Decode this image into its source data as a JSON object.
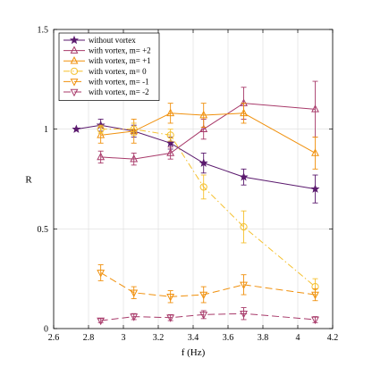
{
  "chart_data": {
    "type": "line",
    "title": "",
    "xlabel": "f (Hz)",
    "ylabel": "R",
    "xlim": [
      2.6,
      4.2
    ],
    "ylim": [
      0,
      1.5
    ],
    "xticks": [
      2.6,
      2.8,
      3,
      3.2,
      3.4,
      3.6,
      3.8,
      4,
      4.2
    ],
    "xtick_labels": [
      "2.6",
      "2.8",
      "3",
      "3.2",
      "3.4",
      "3.6",
      "3.8",
      "4",
      "4.2"
    ],
    "yticks": [
      0,
      0.5,
      1,
      1.5
    ],
    "ytick_labels": [
      "0",
      "0.5",
      "1",
      "1.5"
    ],
    "grid": true,
    "legend_position": "top-left",
    "series": [
      {
        "name": "without vortex",
        "color": "#5b1a6e",
        "marker": "star",
        "dash": "",
        "x": [
          2.73,
          2.87,
          3.06,
          3.27,
          3.46,
          3.69,
          4.1
        ],
        "y": [
          1.0,
          1.02,
          0.99,
          0.93,
          0.83,
          0.76,
          0.7
        ],
        "err": [
          0,
          0.03,
          0.03,
          0.03,
          0.05,
          0.04,
          0.07
        ]
      },
      {
        "name": "with vortex, m= +2",
        "color": "#a83a6a",
        "marker": "triangle-up",
        "dash": "",
        "x": [
          2.87,
          3.06,
          3.27,
          3.46,
          3.69,
          4.1
        ],
        "y": [
          0.86,
          0.85,
          0.88,
          1.0,
          1.13,
          1.1
        ],
        "err": [
          0.03,
          0.03,
          0.03,
          0.05,
          0.08,
          0.14
        ]
      },
      {
        "name": "with vortex, m= +1",
        "color": "#f0900c",
        "marker": "triangle-up",
        "dash": "",
        "x": [
          2.87,
          3.06,
          3.27,
          3.46,
          3.69,
          4.1
        ],
        "y": [
          0.97,
          0.99,
          1.08,
          1.07,
          1.08,
          0.88
        ],
        "err": [
          0.04,
          0.06,
          0.05,
          0.06,
          0.05,
          0.08
        ]
      },
      {
        "name": "with vortex, m= 0",
        "color": "#f5c02e",
        "marker": "circle",
        "dash": "7 3 1.5 3",
        "x": [
          2.87,
          3.06,
          3.27,
          3.46,
          3.69,
          4.1
        ],
        "y": [
          1.0,
          1.0,
          0.97,
          0.71,
          0.51,
          0.21
        ],
        "err": [
          0.02,
          0.03,
          0.03,
          0.06,
          0.08,
          0.04
        ]
      },
      {
        "name": "with vortex, m= -1",
        "color": "#f0900c",
        "marker": "triangle-down",
        "dash": "8 4",
        "x": [
          2.87,
          3.06,
          3.27,
          3.46,
          3.69,
          4.1
        ],
        "y": [
          0.28,
          0.18,
          0.16,
          0.17,
          0.22,
          0.17
        ],
        "err": [
          0.04,
          0.03,
          0.03,
          0.04,
          0.05,
          0.03
        ]
      },
      {
        "name": "with vortex, m= -2",
        "color": "#a83a6a",
        "marker": "triangle-down",
        "dash": "8 4",
        "x": [
          2.87,
          3.06,
          3.27,
          3.46,
          3.69,
          4.1
        ],
        "y": [
          0.04,
          0.06,
          0.055,
          0.07,
          0.075,
          0.045
        ],
        "err": [
          0.01,
          0.015,
          0.015,
          0.02,
          0.03,
          0.015
        ]
      }
    ]
  }
}
